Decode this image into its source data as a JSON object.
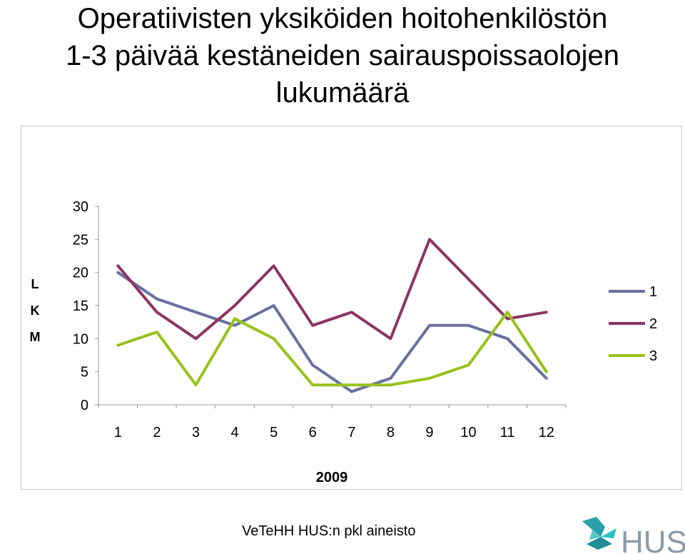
{
  "title_lines": [
    "Operatiivisten yksiköiden hoitohenkilöstön",
    "1-3 päivää kestäneiden sairauspoissaolojen",
    "lukumäärä"
  ],
  "footer": {
    "source": "VeTeHH HUS:n pkl aineisto",
    "logo_text": "HUS"
  },
  "chart_data": {
    "type": "line",
    "title": "Operatiivisten yksiköiden hoitohenkilöstön 1-3 päivää kestäneiden sairauspoissaolojen lukumäärä",
    "xlabel": "2009",
    "ylabel": "LKM",
    "ylabel_letters": [
      "L",
      "K",
      "M"
    ],
    "x": [
      1,
      2,
      3,
      4,
      5,
      6,
      7,
      8,
      9,
      10,
      11,
      12
    ],
    "yticks": [
      0,
      5,
      10,
      15,
      20,
      25,
      30
    ],
    "ylim": [
      0,
      30
    ],
    "grid": false,
    "legend_position": "right",
    "series": [
      {
        "name": "1",
        "color": "#6a6fa0",
        "values": [
          20,
          16,
          14,
          12,
          15,
          6,
          2,
          4,
          12,
          12,
          10,
          4
        ]
      },
      {
        "name": "2",
        "color": "#8c3563",
        "values": [
          21,
          14,
          10,
          15,
          21,
          12,
          14,
          10,
          25,
          19,
          13,
          14
        ]
      },
      {
        "name": "3",
        "color": "#97c21a",
        "values": [
          9,
          11,
          3,
          13,
          10,
          3,
          3,
          3,
          4,
          6,
          14,
          5
        ]
      }
    ]
  }
}
